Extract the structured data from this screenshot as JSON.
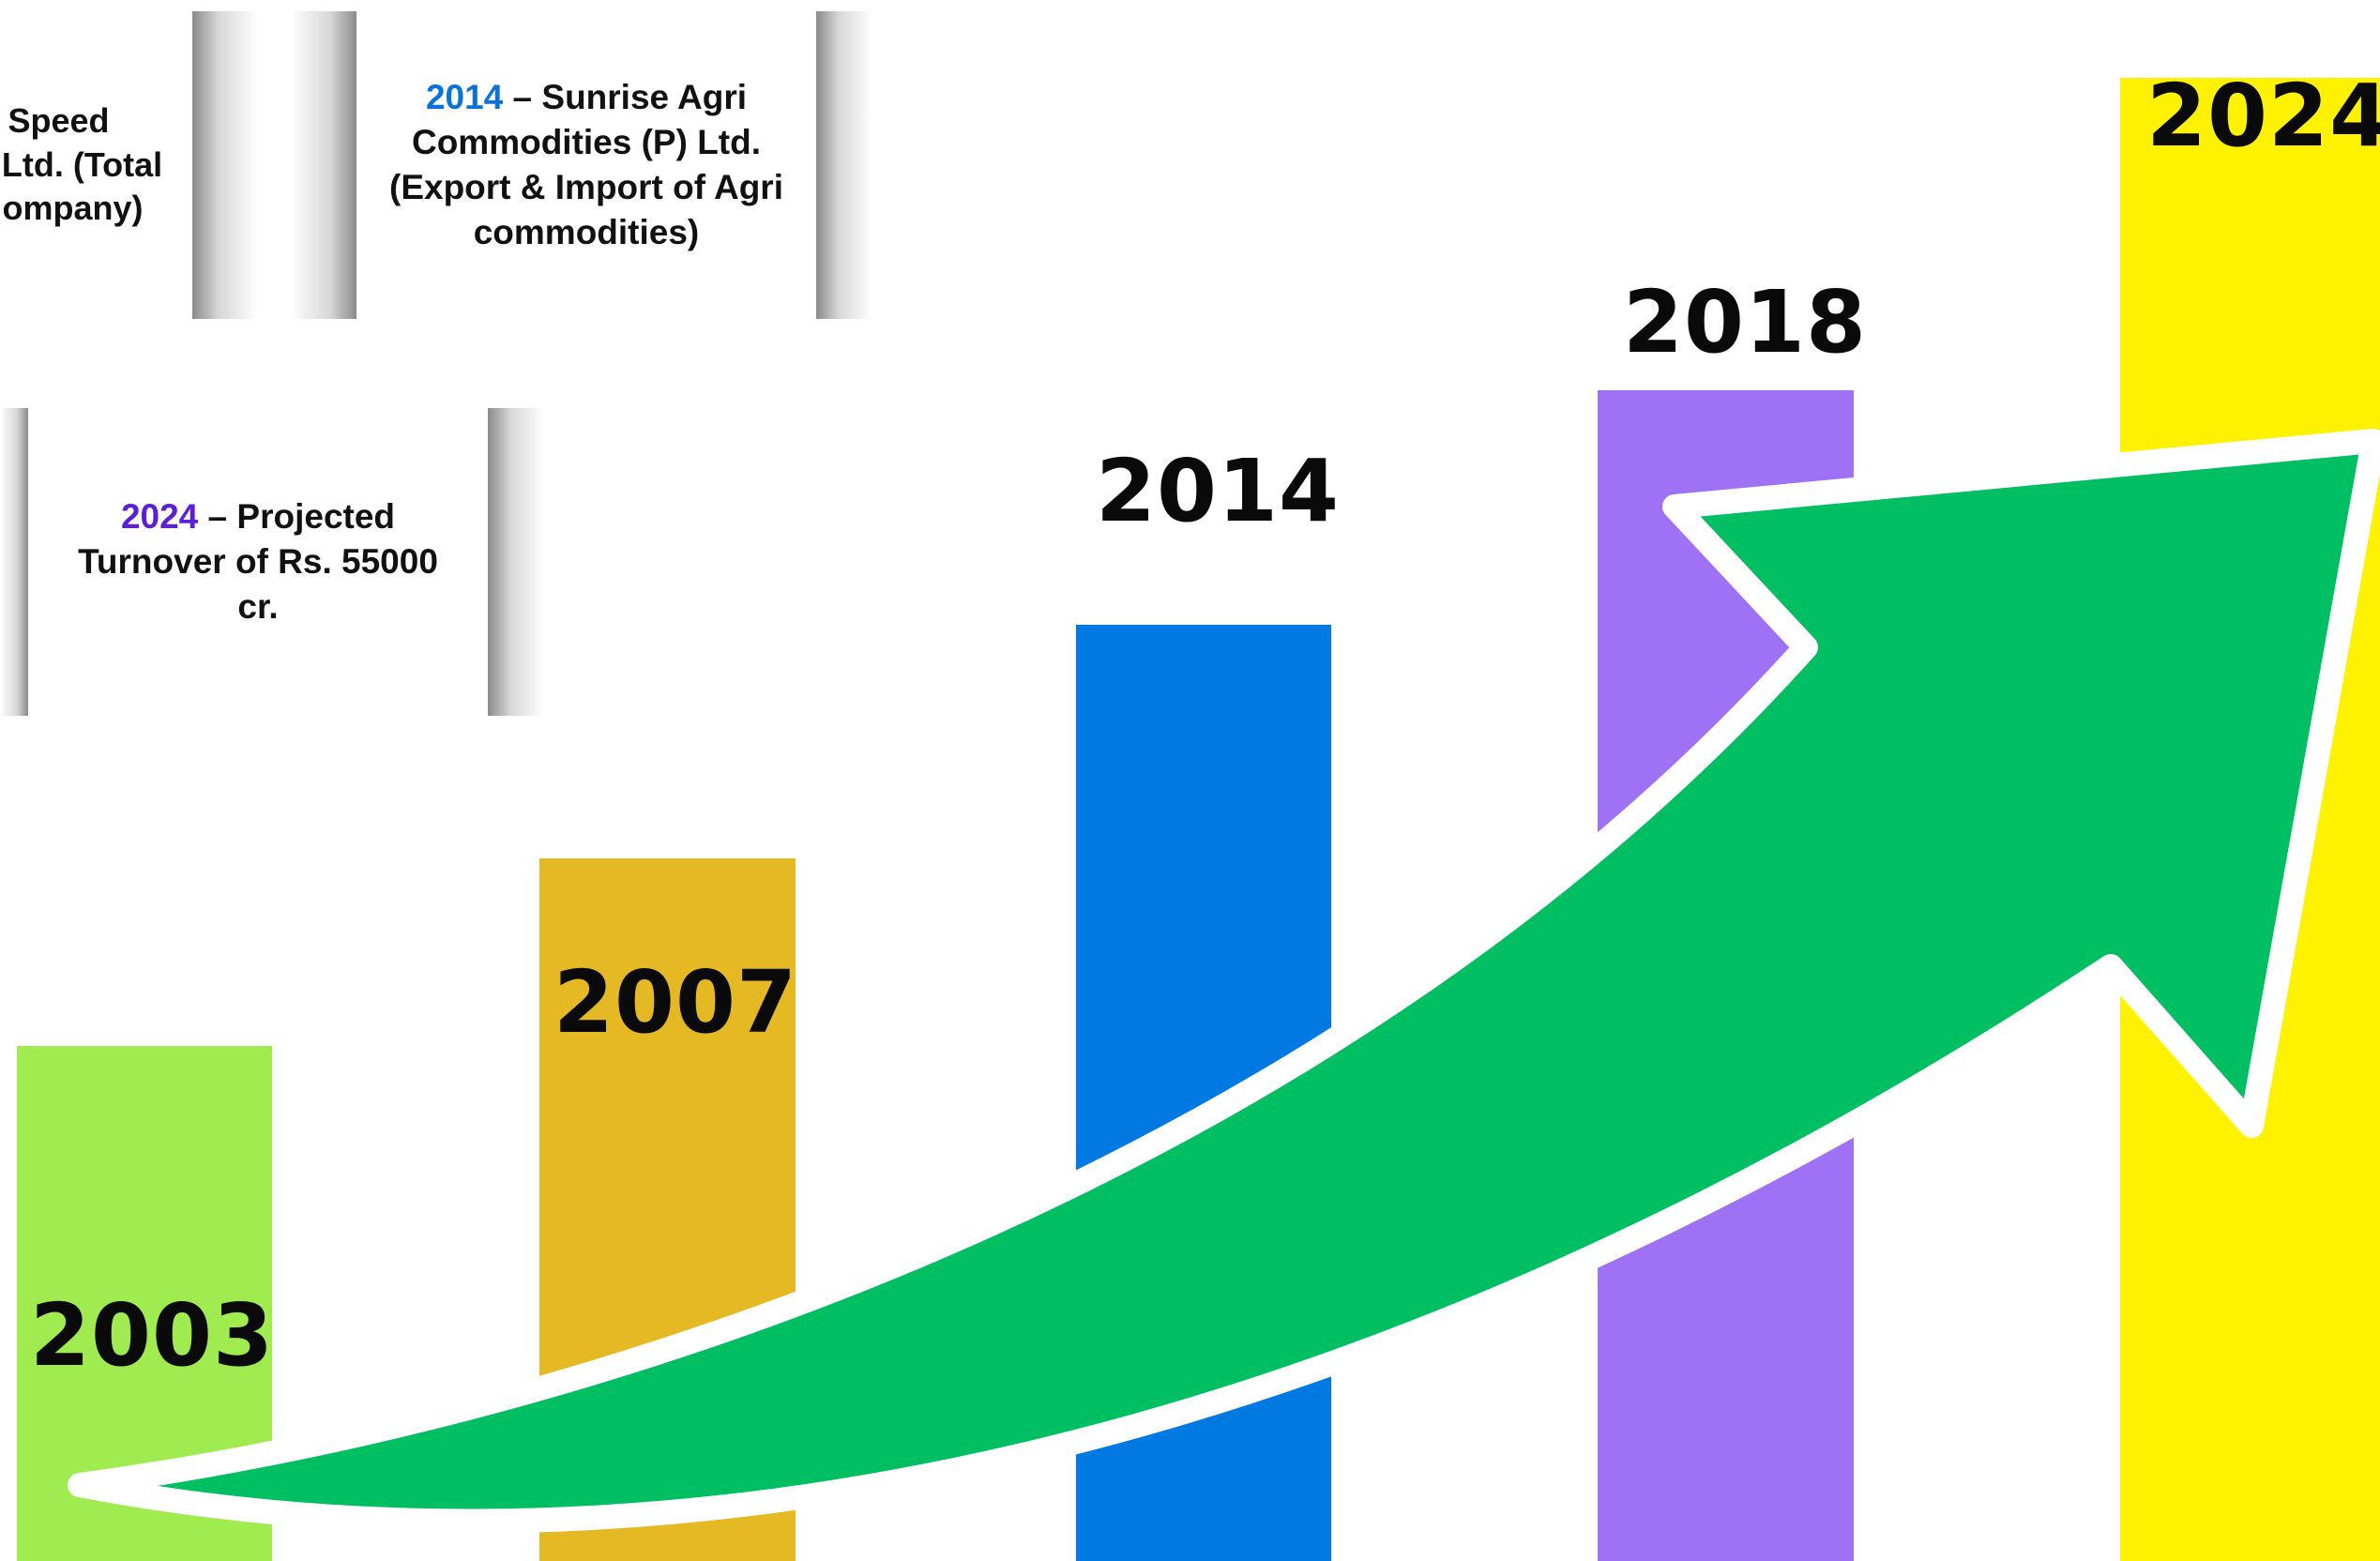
{
  "milestones": [
    {
      "year": "2003",
      "color": "#a0eb50",
      "bar_height_pct": 0.33
    },
    {
      "year": "2007",
      "color": "#e5b923",
      "bar_height_pct": 0.45
    },
    {
      "year": "2014",
      "color": "#0079e3",
      "bar_height_pct": 0.6
    },
    {
      "year": "2018",
      "color": "#9e71f5",
      "bar_height_pct": 0.75
    },
    {
      "year": "2024",
      "color": "#fff200",
      "bar_height_pct": 0.95
    }
  ],
  "notes": {
    "partial": {
      "lines": [
        "Speed",
        "Ltd. (Total",
        "ompany)"
      ]
    },
    "sunrise": {
      "year": "2014",
      "year_color": "#0b72d8",
      "text": " – Sunrise Agri Commodities (P) Ltd. (Export & Import of Agri commodities)"
    },
    "projected": {
      "year": "2024",
      "year_color": "#5a1fd6",
      "text": " – Projected Turnover of Rs. 55000 cr."
    }
  },
  "arrow": {
    "fill": "#00bf63",
    "stroke": "#ffffff"
  }
}
